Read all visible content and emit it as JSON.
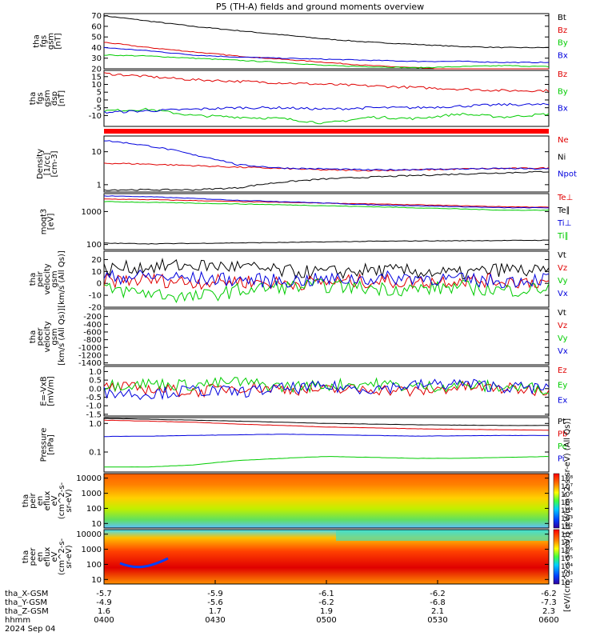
{
  "title": "P5 (TH-A) fields and ground moments overview",
  "colors": {
    "black": "#000000",
    "red": "#e00000",
    "green": "#00cc00",
    "blue": "#0000dd"
  },
  "chart_data": [
    {
      "id": "p1",
      "type": "line",
      "ylabels": [
        "tha",
        "fgs",
        "gsm",
        "[nT]"
      ],
      "yscale": "linear",
      "ylim": [
        20,
        72
      ],
      "ticks": [
        20,
        30,
        40,
        50,
        60,
        70
      ],
      "series": [
        {
          "name": "Bt",
          "color": "black",
          "values": [
            70,
            65,
            60,
            56,
            52,
            48,
            45,
            43,
            41,
            40,
            40
          ]
        },
        {
          "name": "Bz",
          "color": "red",
          "values": [
            45,
            40,
            36,
            32,
            29,
            26,
            23,
            21,
            19,
            18,
            18
          ]
        },
        {
          "name": "By",
          "color": "green",
          "values": [
            33,
            32,
            30,
            28,
            26,
            23,
            22,
            21,
            22,
            23,
            22
          ]
        },
        {
          "name": "Bx",
          "color": "blue",
          "values": [
            40,
            37,
            33,
            31,
            30,
            29,
            28,
            27,
            27,
            26,
            26
          ]
        }
      ]
    },
    {
      "id": "p2",
      "type": "line",
      "ylabels": [
        "tha",
        "fgs",
        "gsm",
        "dsp",
        "[nT]"
      ],
      "yscale": "linear",
      "ylim": [
        -17,
        19
      ],
      "ticks": [
        -10,
        -5,
        0,
        5,
        10,
        15
      ],
      "series": [
        {
          "name": "Bz",
          "color": "red",
          "values": [
            17,
            15,
            13,
            12,
            11,
            10,
            9,
            8,
            7,
            6,
            6
          ]
        },
        {
          "name": "By",
          "color": "green",
          "values": [
            -7,
            -6,
            -10,
            -11,
            -12,
            -15,
            -11,
            -12,
            -9,
            -11,
            -9
          ]
        },
        {
          "name": "Bx",
          "color": "blue",
          "values": [
            -8,
            -7,
            -6,
            -5,
            -5,
            -6,
            -5,
            -5,
            -4,
            -3,
            -3
          ]
        }
      ]
    },
    {
      "id": "p4",
      "type": "line",
      "ylabels": [
        "Density",
        "[1/cc]",
        "[cm-3]"
      ],
      "yscale": "log",
      "ylim": [
        0.6,
        30
      ],
      "ticks": [
        1,
        10
      ],
      "series": [
        {
          "name": "Ne",
          "color": "red",
          "values": [
            4.5,
            4.2,
            3.8,
            3.4,
            3.1,
            2.8,
            2.7,
            2.8,
            3.0,
            3.1,
            3.2
          ]
        },
        {
          "name": "Ni",
          "color": "black",
          "values": [
            0.7,
            0.7,
            0.7,
            0.8,
            1.2,
            1.5,
            1.7,
            1.9,
            2.1,
            2.3,
            2.5
          ]
        },
        {
          "name": "Npot",
          "color": "blue",
          "values": [
            22,
            15,
            8,
            4,
            3.2,
            3.0,
            2.8,
            2.9,
            3.0,
            3.1,
            3.0
          ]
        }
      ]
    },
    {
      "id": "p5",
      "type": "line",
      "ylabels": [
        "moqt3",
        "[eV]"
      ],
      "yscale": "log",
      "ylim": [
        70,
        3500
      ],
      "ticks": [
        100,
        1000
      ],
      "series": [
        {
          "name": "Te⊥",
          "color": "red",
          "values": [
            2400,
            2300,
            2150,
            2000,
            1900,
            1800,
            1700,
            1600,
            1500,
            1400,
            1350
          ]
        },
        {
          "name": "Te∥",
          "color": "black",
          "values": [
            110,
            105,
            108,
            112,
            115,
            120,
            125,
            128,
            130,
            132,
            135
          ]
        },
        {
          "name": "Ti⊥",
          "color": "blue",
          "values": [
            3000,
            2800,
            2500,
            2200,
            2000,
            1800,
            1600,
            1500,
            1400,
            1300,
            1300
          ]
        },
        {
          "name": "Ti∥",
          "color": "green",
          "values": [
            2000,
            1900,
            1800,
            1700,
            1600,
            1500,
            1400,
            1300,
            1200,
            1100,
            1100
          ]
        }
      ]
    },
    {
      "id": "p6",
      "type": "line",
      "ylabels": [
        "tha",
        "peir",
        "velocity",
        "gsm",
        "[km/s (All Qs)]"
      ],
      "yscale": "linear",
      "ylim": [
        -20,
        27
      ],
      "ticks": [
        -20,
        -10,
        0,
        10,
        20
      ],
      "series": [
        {
          "name": "Vt",
          "color": "black",
          "values": [
            12,
            14,
            15,
            14,
            10,
            9,
            11,
            10,
            8,
            12,
            9
          ]
        },
        {
          "name": "Vz",
          "color": "red",
          "values": [
            2,
            3,
            1,
            2,
            0,
            1,
            2,
            1,
            3,
            2,
            1
          ]
        },
        {
          "name": "Vy",
          "color": "green",
          "values": [
            -5,
            -8,
            -12,
            -6,
            -3,
            -2,
            -4,
            -5,
            -3,
            -6,
            -4
          ]
        },
        {
          "name": "Vx",
          "color": "blue",
          "values": [
            5,
            6,
            4,
            3,
            2,
            3,
            4,
            5,
            3,
            2,
            4
          ]
        }
      ]
    },
    {
      "id": "p7",
      "type": "line",
      "ylabels": [
        "tha",
        "peer",
        "velocity",
        "gsm",
        "[km/s (All Qs)]"
      ],
      "yscale": "linear",
      "ylim": [
        -1450,
        0
      ],
      "ticks": [
        -200,
        -400,
        -600,
        -800,
        -1000,
        -1200,
        -1400
      ],
      "series": [
        {
          "name": "Vt",
          "color": "black",
          "values": []
        },
        {
          "name": "Vz",
          "color": "red",
          "values": []
        },
        {
          "name": "Vy",
          "color": "green",
          "values": []
        },
        {
          "name": "Vx",
          "color": "blue",
          "values": []
        }
      ]
    },
    {
      "id": "p8",
      "type": "line",
      "ylabels": [
        "E=-VxB",
        "[mV/m]"
      ],
      "yscale": "linear",
      "ylim": [
        -1.6,
        1.3
      ],
      "ticks": [
        -1.5,
        -1.0,
        -0.5,
        0.0,
        0.5,
        1.0
      ],
      "tickLabels": [
        "-1.5",
        "-1.0",
        "-0.5",
        "0.0",
        "0.5",
        "1.0"
      ],
      "series": [
        {
          "name": "Ez",
          "color": "red",
          "values": [
            0.1,
            0.0,
            -0.2,
            0.1,
            0.0,
            -0.1,
            0.0,
            -0.2,
            0.1,
            0.0,
            -0.1
          ]
        },
        {
          "name": "Ey",
          "color": "green",
          "values": [
            0.2,
            0.3,
            0.2,
            0.4,
            0.1,
            0.2,
            0.3,
            0.1,
            0.2,
            0.1,
            0.0
          ]
        },
        {
          "name": "Ex",
          "color": "blue",
          "values": [
            -0.2,
            -0.3,
            -0.1,
            -0.2,
            0.0,
            0.1,
            0.0,
            0.2,
            0.3,
            0.1,
            0.0
          ]
        }
      ]
    },
    {
      "id": "p9",
      "type": "line",
      "ylabels": [
        "Pressure",
        "[nPa]"
      ],
      "yscale": "log",
      "ylim": [
        0.02,
        1.6
      ],
      "ticks": [
        0.1,
        1.0
      ],
      "tickLabels": [
        "0.1",
        "1.0"
      ],
      "series": [
        {
          "name": "Pt",
          "color": "black",
          "values": [
            1.5,
            1.4,
            1.3,
            1.2,
            1.1,
            1.0,
            0.95,
            0.9,
            0.87,
            0.85,
            0.85
          ]
        },
        {
          "name": "Pb",
          "color": "red",
          "values": [
            1.3,
            1.2,
            1.1,
            0.95,
            0.85,
            0.75,
            0.7,
            0.65,
            0.62,
            0.6,
            0.58
          ]
        },
        {
          "name": "Pe",
          "color": "green",
          "values": [
            0.03,
            0.03,
            0.035,
            0.05,
            0.06,
            0.07,
            0.065,
            0.06,
            0.06,
            0.065,
            0.07
          ]
        },
        {
          "name": "Pi",
          "color": "blue",
          "values": [
            0.35,
            0.36,
            0.38,
            0.4,
            0.42,
            0.4,
            0.38,
            0.36,
            0.37,
            0.38,
            0.38
          ]
        }
      ]
    },
    {
      "id": "s1",
      "type": "heatmap",
      "ylabels": [
        "tha",
        "peir",
        "en",
        "eflux",
        "eV",
        "(cm^2-s-",
        "sr-eV)"
      ],
      "yscale": "log",
      "ylim": [
        5,
        20000
      ],
      "ticks": [
        10,
        100,
        1000,
        10000
      ],
      "tickLabels": [
        "10",
        "100",
        "1000",
        "10000"
      ]
    },
    {
      "id": "s2",
      "type": "heatmap",
      "ylabels": [
        "tha",
        "peer",
        "en",
        "eflux",
        "eV",
        "(cm^2-s-",
        "sr-eV)"
      ],
      "yscale": "log",
      "ylim": [
        5,
        20000
      ],
      "ticks": [
        10,
        100,
        1000,
        10000
      ],
      "tickLabels": [
        "10",
        "100",
        "1000",
        "10000"
      ]
    }
  ],
  "colorbars": [
    {
      "ticks": [
        "10⁸",
        "10⁷",
        "10⁶",
        "10⁵",
        "10⁴",
        "10³",
        "10²"
      ]
    },
    {
      "ticks": [
        "10⁸",
        "10⁷",
        "10⁶",
        "10⁵",
        "10⁴",
        "10³",
        "10²"
      ]
    }
  ],
  "colorbar_label": "[eV/(cm^2-s-sr-eV)] [eV/(cm^2-s-sr-eV) (All Qs)]",
  "xaxis": {
    "rows": [
      {
        "label": "tha_X-GSM",
        "values": [
          "-5.7",
          "-5.9",
          "-6.1",
          "-6.2",
          "-6.2"
        ]
      },
      {
        "label": "tha_Y-GSM",
        "values": [
          "-4.9",
          "-5.6",
          "-6.2",
          "-6.8",
          "-7.3"
        ]
      },
      {
        "label": "tha_Z-GSM",
        "values": [
          "1.6",
          "1.7",
          "1.9",
          "2.1",
          "2.3"
        ]
      },
      {
        "label": "hhmm",
        "values": [
          "0400",
          "0430",
          "0500",
          "0530",
          "0600"
        ]
      }
    ],
    "date": "2024 Sep 04"
  }
}
